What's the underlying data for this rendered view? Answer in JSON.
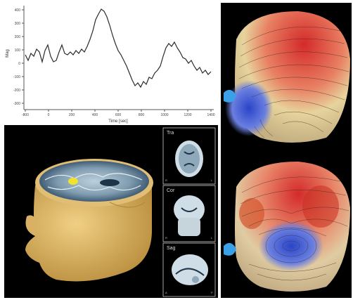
{
  "waveform": {
    "ylabel": "Mag",
    "xlabel": "Time [sec]",
    "xticks": [
      "-800",
      "0",
      "200",
      "400",
      "600",
      "800",
      "1000",
      "1200",
      "1400"
    ],
    "yticks": [
      "400",
      "300",
      "200",
      "100",
      "0",
      "-100",
      "-200",
      "-300"
    ]
  },
  "mri": {
    "views": [
      {
        "label": "Tra"
      },
      {
        "label": "Cor"
      },
      {
        "label": "Sag"
      }
    ]
  },
  "colors": {
    "background": "#000000",
    "head_skin": "#e3bd6e",
    "positive": "#d42a2a",
    "negative": "#2a44c8",
    "neutral": "#d8c8a0",
    "highlight": "#f2e22a"
  }
}
